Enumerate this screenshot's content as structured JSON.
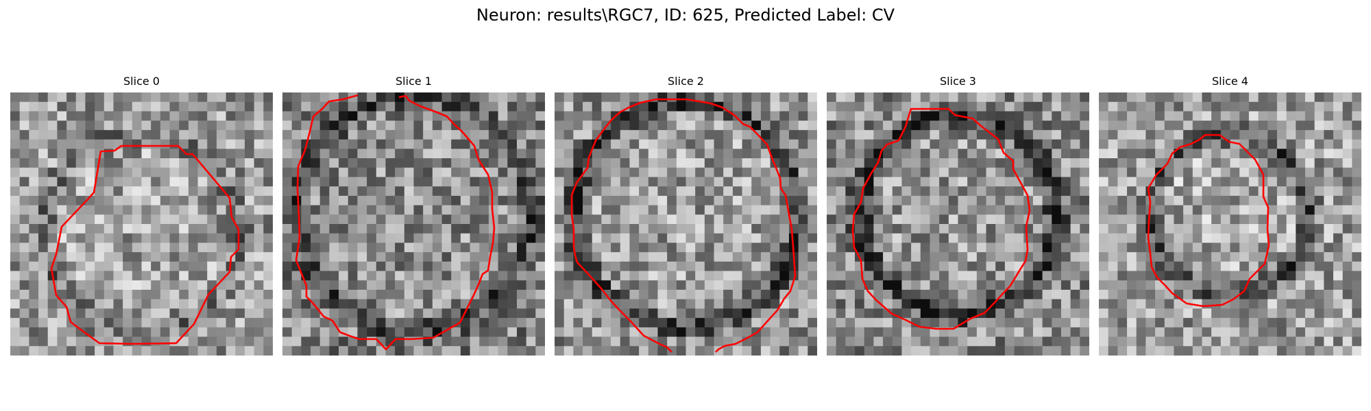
{
  "figure": {
    "title": "Neuron: results\\RGC7, ID: 625, Predicted Label: CV"
  },
  "panels": [
    {
      "title": "Slice 0"
    },
    {
      "title": "Slice 1"
    },
    {
      "title": "Slice 2"
    },
    {
      "title": "Slice 3"
    },
    {
      "title": "Slice 4"
    }
  ],
  "colors": {
    "contour": "#ff0000",
    "background": "#ffffff"
  }
}
